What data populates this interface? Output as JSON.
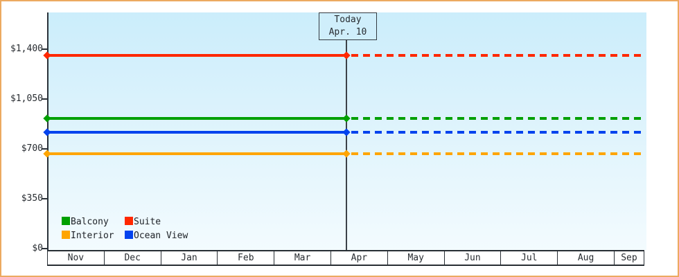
{
  "page": {
    "background": "#ffffff",
    "border_color": "#eca960"
  },
  "chart_data": {
    "type": "line",
    "title": "",
    "xlabel": "",
    "ylabel": "",
    "ylim": [
      0,
      1400
    ],
    "grid": false,
    "x_categories": [
      "Nov",
      "Dec",
      "Jan",
      "Feb",
      "Mar",
      "Apr",
      "May",
      "Jun",
      "Jul",
      "Aug",
      "Sep"
    ],
    "y_ticks": [
      {
        "label": "$1,400",
        "value": 1400
      },
      {
        "label": "$1,050",
        "value": 1050
      },
      {
        "label": "$700",
        "value": 700
      },
      {
        "label": "$350",
        "value": 350
      },
      {
        "label": "$0",
        "value": 0
      }
    ],
    "series": [
      {
        "name": "Suite",
        "color": "#ff2800",
        "value": 1355
      },
      {
        "name": "Balcony",
        "color": "#00a000",
        "value": 915
      },
      {
        "name": "Ocean View",
        "color": "#0343ee",
        "value": 815
      },
      {
        "name": "Interior",
        "color": "#ffa500",
        "value": 665
      }
    ],
    "future_style": "dashed-after-today",
    "today_label": {
      "line1": "Today",
      "line2": "Apr. 10"
    },
    "today_x_category": "Apr",
    "legend_position": "inside-bottom-left",
    "legend": [
      {
        "label": "Balcony",
        "color": "#00a000"
      },
      {
        "label": "Suite",
        "color": "#ff2800"
      },
      {
        "label": "Interior",
        "color": "#ffa500"
      },
      {
        "label": "Ocean View",
        "color": "#0343ee"
      }
    ]
  }
}
